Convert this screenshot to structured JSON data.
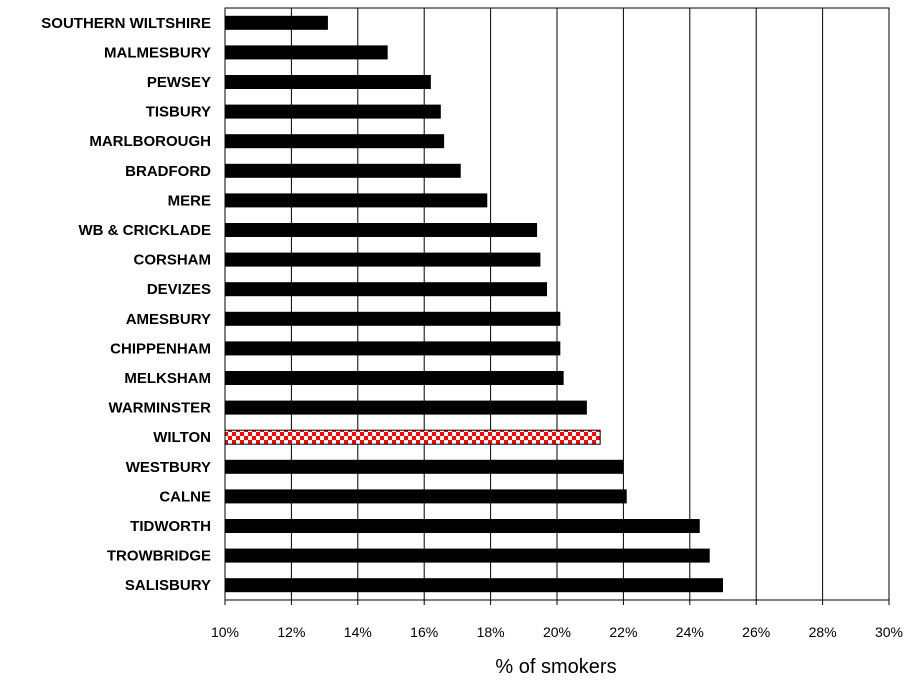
{
  "chart_data": {
    "type": "bar",
    "orientation": "horizontal",
    "categories": [
      "SOUTHERN WILTSHIRE",
      "MALMESBURY",
      "PEWSEY",
      "TISBURY",
      "MARLBOROUGH",
      "BRADFORD",
      "MERE",
      "WB & CRICKLADE",
      "CORSHAM",
      "DEVIZES",
      "AMESBURY",
      "CHIPPENHAM",
      "MELKSHAM",
      "WARMINSTER",
      "WILTON",
      "WESTBURY",
      "CALNE",
      "TIDWORTH",
      "TROWBRIDGE",
      "SALISBURY"
    ],
    "values": [
      13.1,
      14.9,
      16.2,
      16.5,
      16.6,
      17.1,
      17.9,
      19.4,
      19.5,
      19.7,
      20.1,
      20.1,
      20.2,
      20.9,
      21.3,
      22.0,
      22.1,
      24.3,
      24.6,
      25.0
    ],
    "highlight": "WILTON",
    "xlim": [
      10,
      30
    ],
    "xticks": [
      "10%",
      "12%",
      "14%",
      "16%",
      "18%",
      "20%",
      "22%",
      "24%",
      "26%",
      "28%",
      "30%"
    ],
    "xlabel": "% of smokers",
    "grid": "vertical",
    "colors": {
      "bar": "#000000",
      "highlight_a": "#ff0000",
      "highlight_b": "#ffffff",
      "grid": "#000000"
    }
  }
}
